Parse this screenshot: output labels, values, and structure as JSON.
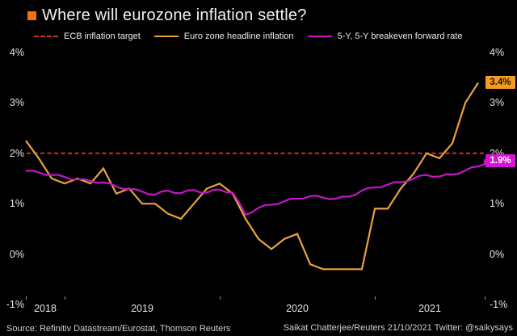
{
  "title": "Where will eurozone inflation settle?",
  "brand_square_color": "#F2700D",
  "legend": [
    {
      "label": "ECB inflation target",
      "color": "#C9302C",
      "style": "dashed"
    },
    {
      "label": "Euro zone headline inflation",
      "color": "#E8A23C",
      "style": "solid"
    },
    {
      "label": "5-Y, 5-Y breakeven forward rate",
      "color": "#C615C6",
      "style": "solid"
    }
  ],
  "y_axis": {
    "tick_labels": [
      "4%",
      "3%",
      "2%",
      "1%",
      "0%",
      "-1%"
    ],
    "tick_values": [
      4,
      3,
      2,
      1,
      0,
      -1
    ]
  },
  "x_axis": {
    "tick_labels": [
      "2018",
      "2019",
      "2020",
      "2021"
    ]
  },
  "annotations": {
    "headline_last": {
      "label": "3.4%",
      "bg": "#F59B20",
      "text_color": "#2b1400",
      "value": 3.4
    },
    "breakeven_last": {
      "label": "1.9%",
      "bg": "#D911D9",
      "text_color": "#ffffff",
      "value": 1.9
    }
  },
  "source": "Source: Refinitiv Datastream/Eurostat, Thomson Reuters",
  "credit": "Saikat Chatterjee/Reuters 21/10/2021 Twitter: @saikysays",
  "chart_data": {
    "type": "line",
    "title": "Where will eurozone inflation settle?",
    "x_start": "2018-10",
    "x_interval": "month",
    "x_end": "2021-10",
    "ylim": [
      -1,
      4
    ],
    "y_tick_format": "percent",
    "grid": false,
    "legend_position": "top",
    "year_boundary_month_indices": [
      0,
      3,
      15,
      27,
      35.5
    ],
    "target_line": {
      "name": "ECB inflation target",
      "value": 2.0,
      "color": "#C9302C",
      "style": "dashed"
    },
    "series": [
      {
        "name": "Euro zone headline inflation",
        "color": "#E8A23C",
        "last_label": "3.4%",
        "values": [
          2.25,
          1.9,
          1.5,
          1.4,
          1.5,
          1.4,
          1.7,
          1.2,
          1.3,
          1.0,
          1.0,
          0.8,
          0.7,
          1.0,
          1.3,
          1.4,
          1.2,
          0.7,
          0.3,
          0.1,
          0.3,
          0.4,
          -0.2,
          -0.3,
          -0.3,
          -0.3,
          -0.3,
          0.9,
          0.9,
          1.3,
          1.6,
          2.0,
          1.9,
          2.2,
          3.0,
          3.4
        ]
      },
      {
        "name": "5-Y, 5-Y breakeven forward rate",
        "color": "#C615C6",
        "last_label": "1.9%",
        "values": [
          1.65,
          1.62,
          1.57,
          1.53,
          1.48,
          1.45,
          1.42,
          1.34,
          1.29,
          1.24,
          1.18,
          1.26,
          1.21,
          1.27,
          1.22,
          1.28,
          1.22,
          0.78,
          0.92,
          0.98,
          1.05,
          1.1,
          1.15,
          1.12,
          1.1,
          1.14,
          1.26,
          1.32,
          1.38,
          1.43,
          1.5,
          1.57,
          1.54,
          1.58,
          1.66,
          1.74,
          1.88
        ]
      }
    ]
  }
}
